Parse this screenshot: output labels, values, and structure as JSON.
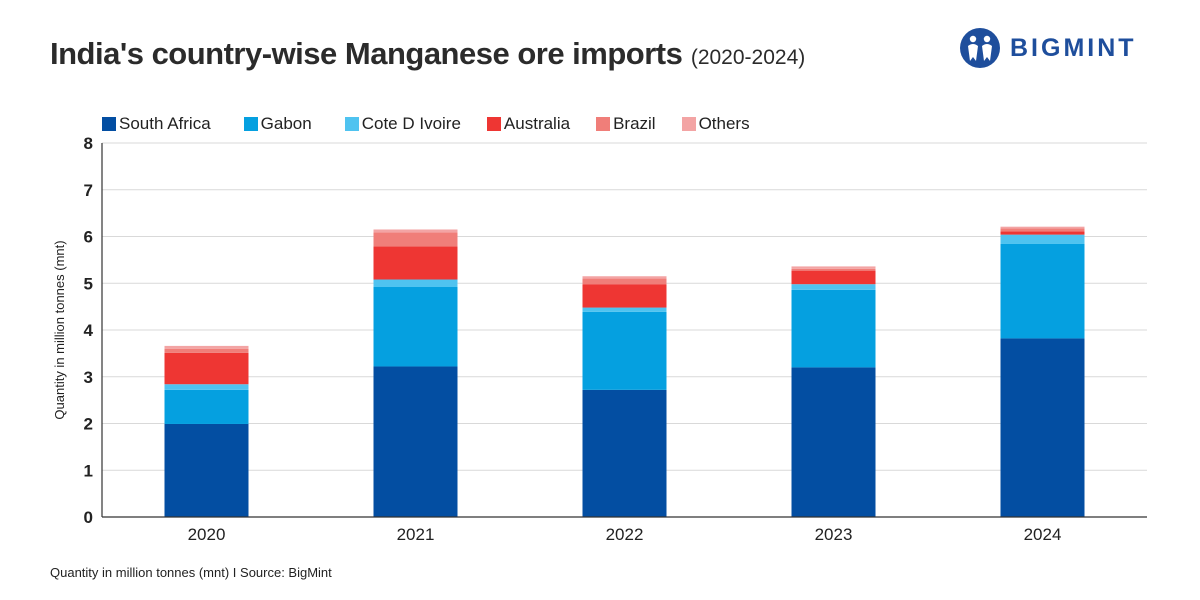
{
  "header": {
    "title": "India's country-wise Manganese ore imports",
    "subtitle": "(2020-2024)"
  },
  "logo": {
    "text": "BIGMINT",
    "color": "#1e4e9c"
  },
  "footer": {
    "text": "Quantity in million tonnes (mnt)  I  Source: BigMint"
  },
  "chart_data": {
    "type": "bar",
    "stacked": true,
    "title": "India's country-wise Manganese ore imports (2020-2024)",
    "xlabel": "",
    "ylabel": "Quantity in million tonnes (mnt)",
    "ylim": [
      0,
      8
    ],
    "yticks": [
      "0",
      "1",
      "2",
      "3",
      "4",
      "5",
      "6",
      "7",
      "8"
    ],
    "grid": true,
    "legend_position": "top-left",
    "categories": [
      "2020",
      "2021",
      "2022",
      "2023",
      "2024"
    ],
    "series": [
      {
        "name": "South Africa",
        "color": "#034ea2",
        "values": [
          1.99,
          3.22,
          2.72,
          3.2,
          3.82
        ]
      },
      {
        "name": "Gabon",
        "color": "#05a0e0",
        "values": [
          0.73,
          1.7,
          1.67,
          1.66,
          2.02
        ]
      },
      {
        "name": "Cote D Ivoire",
        "color": "#4fc3f0",
        "values": [
          0.12,
          0.16,
          0.09,
          0.12,
          0.2
        ]
      },
      {
        "name": "Australia",
        "color": "#ee3633",
        "values": [
          0.67,
          0.71,
          0.5,
          0.29,
          0.07
        ]
      },
      {
        "name": "Brazil",
        "color": "#f07e79",
        "values": [
          0.09,
          0.3,
          0.12,
          0.04,
          0.06
        ]
      },
      {
        "name": "Others",
        "color": "#f3a4a4",
        "values": [
          0.06,
          0.06,
          0.05,
          0.05,
          0.04
        ]
      }
    ]
  }
}
